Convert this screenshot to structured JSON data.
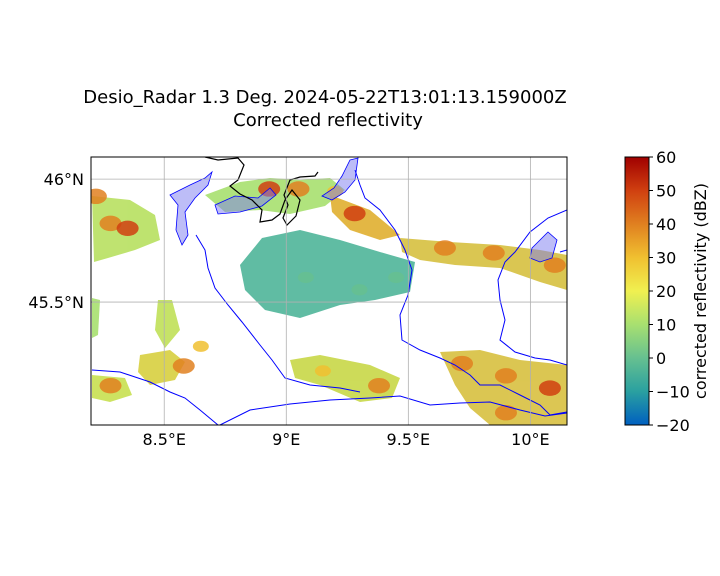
{
  "figure": {
    "title_line1": "Desio_Radar 1.3 Deg. 2024-05-22T13:01:13.159000Z",
    "title_line2": "Corrected reflectivity"
  },
  "map": {
    "lon_range": [
      8.2,
      10.15
    ],
    "lat_range": [
      45.0,
      46.09
    ],
    "x_ticks": [
      {
        "value": 8.5,
        "label": "8.5°E"
      },
      {
        "value": 9.0,
        "label": "9°E"
      },
      {
        "value": 9.5,
        "label": "9.5°E"
      },
      {
        "value": 10.0,
        "label": "10°E"
      }
    ],
    "y_ticks": [
      {
        "value": 46.0,
        "label": "46°N"
      },
      {
        "value": 45.5,
        "label": "45.5°N"
      }
    ],
    "gridlines": true,
    "colors": {
      "boundary_blue": "#0000ff",
      "national_border": "#000000",
      "lakes": "#7b7bf0"
    }
  },
  "colorbar": {
    "label": "corrected reflectivity (dBZ)",
    "min": -20,
    "max": 60,
    "ticks": [
      {
        "value": 60,
        "label": "60"
      },
      {
        "value": 50,
        "label": "50"
      },
      {
        "value": 40,
        "label": "40"
      },
      {
        "value": 30,
        "label": "30"
      },
      {
        "value": 20,
        "label": "20"
      },
      {
        "value": 10,
        "label": "10"
      },
      {
        "value": 0,
        "label": "0"
      },
      {
        "value": -10,
        "label": "−10"
      },
      {
        "value": -20,
        "label": "−20"
      }
    ],
    "colormap": [
      "#0060c0",
      "#2aa0a0",
      "#66c090",
      "#a8e070",
      "#f0f050",
      "#f0c030",
      "#e08020",
      "#d04010",
      "#a00000"
    ]
  },
  "echoes": [
    {
      "lon": 8.28,
      "lat": 45.82,
      "dbz": 38
    },
    {
      "lon": 8.35,
      "lat": 45.8,
      "dbz": 45
    },
    {
      "lon": 8.22,
      "lat": 45.93,
      "dbz": 35
    },
    {
      "lon": 8.93,
      "lat": 45.96,
      "dbz": 50
    },
    {
      "lon": 9.05,
      "lat": 45.96,
      "dbz": 35
    },
    {
      "lon": 9.28,
      "lat": 45.86,
      "dbz": 48
    },
    {
      "lon": 9.2,
      "lat": 45.95,
      "dbz": 28
    },
    {
      "lon": 9.65,
      "lat": 45.72,
      "dbz": 38
    },
    {
      "lon": 9.85,
      "lat": 45.7,
      "dbz": 42
    },
    {
      "lon": 10.1,
      "lat": 45.65,
      "dbz": 35
    },
    {
      "lon": 8.58,
      "lat": 45.24,
      "dbz": 40
    },
    {
      "lon": 8.65,
      "lat": 45.32,
      "dbz": 30
    },
    {
      "lon": 8.28,
      "lat": 45.16,
      "dbz": 35
    },
    {
      "lon": 9.15,
      "lat": 45.22,
      "dbz": 28
    },
    {
      "lon": 9.38,
      "lat": 45.16,
      "dbz": 35
    },
    {
      "lon": 9.72,
      "lat": 45.25,
      "dbz": 40
    },
    {
      "lon": 9.9,
      "lat": 45.2,
      "dbz": 38
    },
    {
      "lon": 10.08,
      "lat": 45.15,
      "dbz": 45
    },
    {
      "lon": 9.9,
      "lat": 45.05,
      "dbz": 40
    },
    {
      "lon": 9.08,
      "lat": 45.6,
      "dbz": -3
    },
    {
      "lon": 9.3,
      "lat": 45.55,
      "dbz": -2
    },
    {
      "lon": 9.45,
      "lat": 45.6,
      "dbz": -1
    }
  ]
}
